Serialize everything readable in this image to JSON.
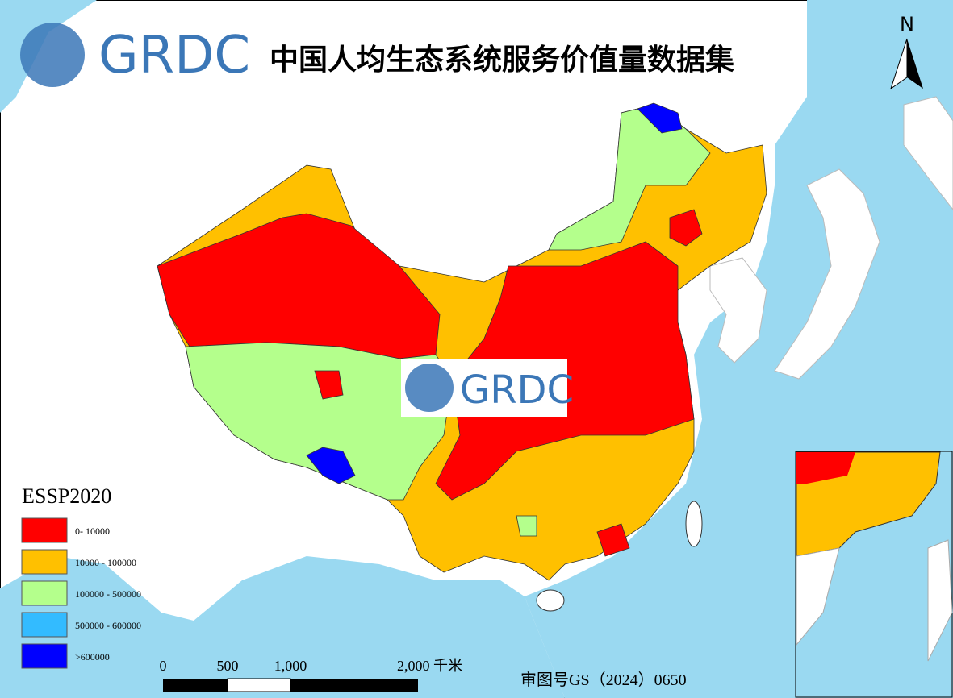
{
  "header": {
    "logo_text": "GRDC",
    "title": "中国人均生态系统服务价值量数据集"
  },
  "watermark": {
    "logo_text": "GRDC"
  },
  "north_arrow": {
    "label": "N"
  },
  "legend": {
    "title": "ESSP2020",
    "items": [
      {
        "label": "0- 10000",
        "color": "#ff0000"
      },
      {
        "label": "10000 - 100000",
        "color": "#ffc000"
      },
      {
        "label": "100000 - 500000",
        "color": "#b4ff8c"
      },
      {
        "label": "500000 - 600000",
        "color": "#33bbff"
      },
      {
        "label": ">600000",
        "color": "#0000ff"
      }
    ]
  },
  "scale_bar": {
    "labels": [
      "0",
      "500",
      "1,000",
      "2,000 千米"
    ]
  },
  "map_number": "审图号GS（2024）0650"
}
